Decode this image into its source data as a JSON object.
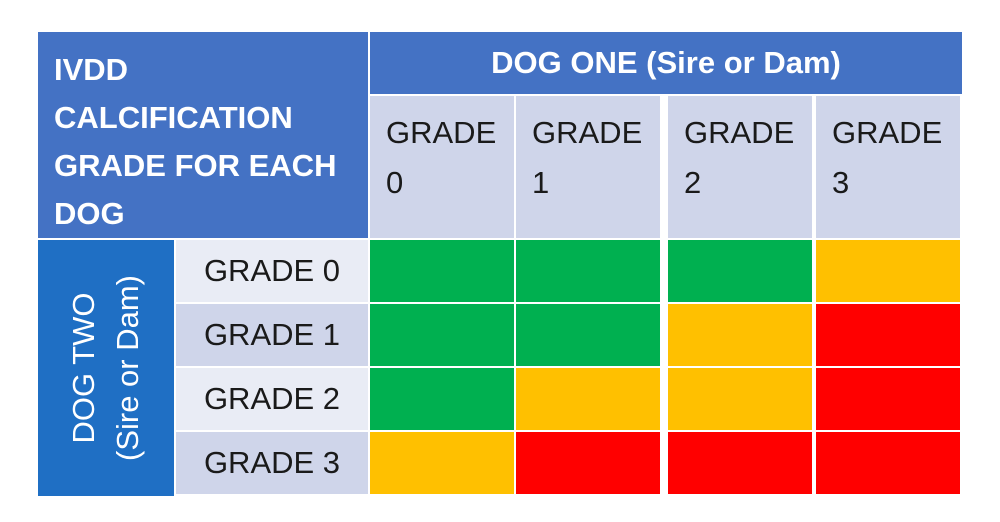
{
  "chart_data": {
    "type": "heatmap",
    "corner_title": [
      "IVDD",
      "CALCIFICATION",
      "GRADE FOR EACH",
      "DOG"
    ],
    "column_title": "DOG ONE (Sire or Dam)",
    "row_title": [
      "DOG TWO",
      "(Sire or Dam)"
    ],
    "columns": [
      [
        "GRADE",
        "0"
      ],
      [
        "GRADE",
        "1"
      ],
      [
        "GRADE",
        "2"
      ],
      [
        "GRADE",
        "3"
      ]
    ],
    "rows": [
      "GRADE 0",
      "GRADE 1",
      "GRADE 2",
      "GRADE 3"
    ],
    "levels": [
      [
        "green",
        "green",
        "green",
        "amber"
      ],
      [
        "green",
        "green",
        "amber",
        "red"
      ],
      [
        "green",
        "amber",
        "amber",
        "red"
      ],
      [
        "amber",
        "red",
        "red",
        "red"
      ]
    ],
    "colors": {
      "green": "#00b050",
      "amber": "#ffc000",
      "red": "#ff0000"
    }
  }
}
